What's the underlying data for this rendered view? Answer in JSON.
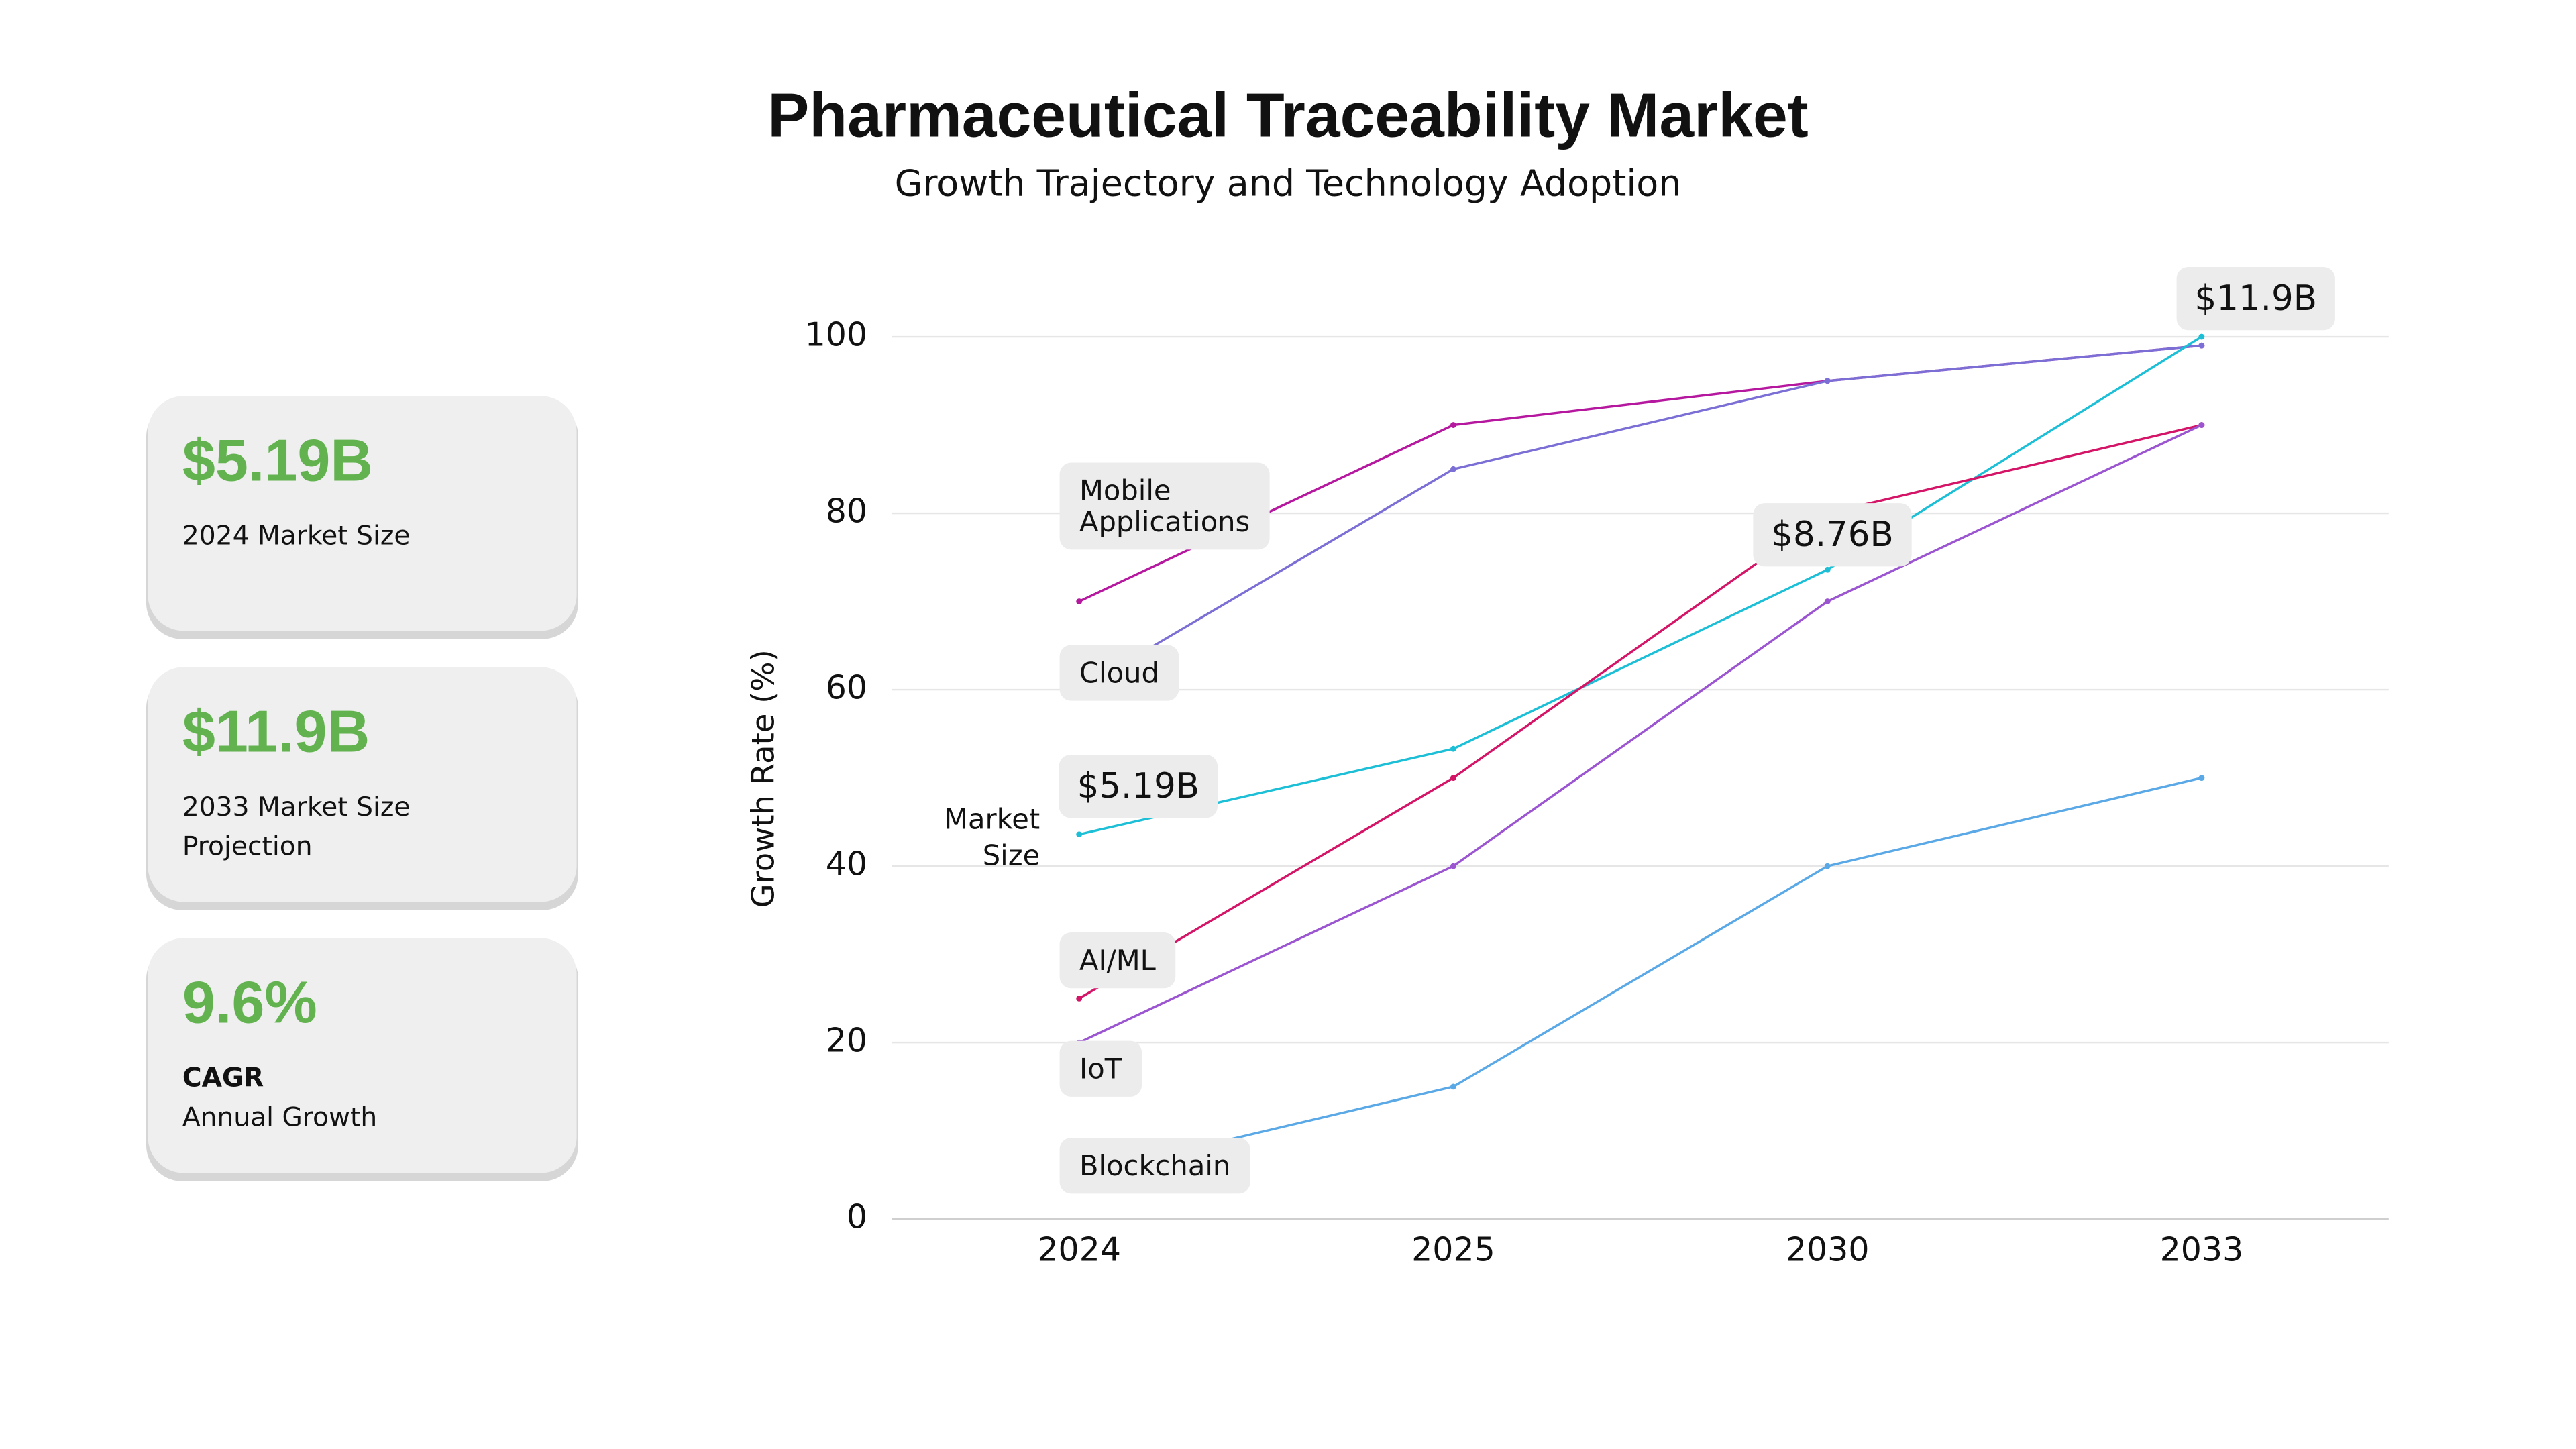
{
  "kpis": [
    {
      "value": "$5.19B",
      "label": "2024 Market Size"
    },
    {
      "value": "$11.9B",
      "label": "2033 Market Size Projection"
    },
    {
      "value": "9.6%",
      "heading": "CAGR",
      "label": "Annual Growth"
    }
  ],
  "chart_data": {
    "type": "line",
    "title": "Pharmaceutical Traceability Market",
    "subtitle": "Growth Trajectory and Technology Adoption",
    "y_label": "Growth Rate (%)",
    "categories": [
      "2024",
      "2025",
      "2030",
      "2033"
    ],
    "ylim": [
      0,
      100
    ],
    "yticks": [
      0,
      20,
      40,
      60,
      80,
      100
    ],
    "grid": true,
    "series": [
      {
        "name": "Mobile Applications",
        "color": "#b5179e",
        "values": [
          70,
          90,
          95,
          99
        ]
      },
      {
        "name": "Cloud",
        "color": "#7b6fd6",
        "values": [
          60,
          85,
          95,
          99
        ]
      },
      {
        "name": "Market Size",
        "color": "#1cbfd6",
        "values": [
          43.6,
          53.3,
          73.6,
          100
        ],
        "point_labels": [
          "$5.19B",
          null,
          "$8.76B",
          "$11.9B"
        ]
      },
      {
        "name": "AI/ML",
        "color": "#d41466",
        "values": [
          25,
          50,
          80,
          90
        ]
      },
      {
        "name": "IoT",
        "color": "#9b55d0",
        "values": [
          20,
          40,
          70,
          90
        ]
      },
      {
        "name": "Blockchain",
        "color": "#5aa9e6",
        "values": [
          5,
          15,
          40,
          50
        ]
      }
    ]
  }
}
